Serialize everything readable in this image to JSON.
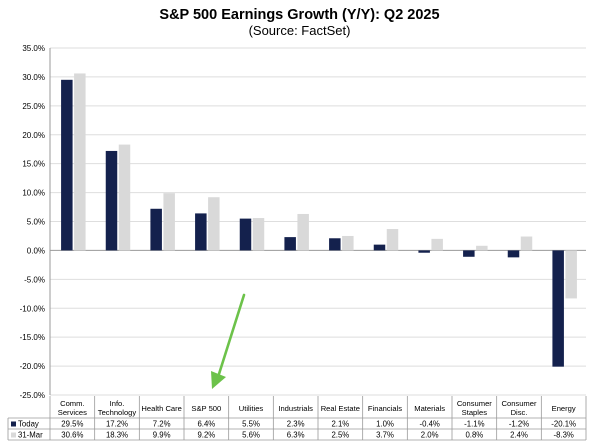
{
  "chart_data": {
    "type": "bar",
    "title": "S&P 500 Earnings Growth (Y/Y): Q2 2025",
    "subtitle": "(Source: FactSet)",
    "categories": [
      [
        "Comm.",
        "Services"
      ],
      [
        "Info.",
        "Technology"
      ],
      [
        "Health Care"
      ],
      [
        "S&P 500"
      ],
      [
        "Utilities"
      ],
      [
        "Industrials"
      ],
      [
        "Real Estate"
      ],
      [
        "Financials"
      ],
      [
        "Materials"
      ],
      [
        "Consumer",
        "Staples"
      ],
      [
        "Consumer",
        "Disc."
      ],
      [
        "Energy"
      ]
    ],
    "series": [
      {
        "name": "Today",
        "color": "#14214d",
        "values": [
          29.5,
          17.2,
          7.2,
          6.4,
          5.5,
          2.3,
          2.1,
          1.0,
          -0.4,
          -1.1,
          -1.2,
          -20.1
        ],
        "labels": [
          "29.5%",
          "17.2%",
          "7.2%",
          "6.4%",
          "5.5%",
          "2.3%",
          "2.1%",
          "1.0%",
          "-0.4%",
          "-1.1%",
          "-1.2%",
          "-20.1%"
        ]
      },
      {
        "name": "31-Mar",
        "color": "#d9d9d9",
        "values": [
          30.6,
          18.3,
          9.9,
          9.2,
          5.6,
          6.3,
          2.5,
          3.7,
          2.0,
          0.8,
          2.4,
          -8.3
        ],
        "labels": [
          "30.6%",
          "18.3%",
          "9.9%",
          "9.2%",
          "5.6%",
          "6.3%",
          "2.5%",
          "3.7%",
          "2.0%",
          "0.8%",
          "2.4%",
          "-8.3%"
        ]
      }
    ],
    "ylim": [
      -25,
      35
    ],
    "yticks": [
      35,
      30,
      25,
      20,
      15,
      10,
      5,
      0,
      -5,
      -10,
      -15,
      -20,
      -25
    ],
    "ytick_labels": [
      "35.0%",
      "30.0%",
      "25.0%",
      "20.0%",
      "15.0%",
      "10.0%",
      "5.0%",
      "0.0%",
      "-5.0%",
      "-10.0%",
      "-15.0%",
      "-20.0%",
      "-25.0%"
    ],
    "grid": true,
    "legend": "data table below chart",
    "annotation": "green arrow pointing to S&P 500",
    "annotation_color": "#6cc24a"
  }
}
